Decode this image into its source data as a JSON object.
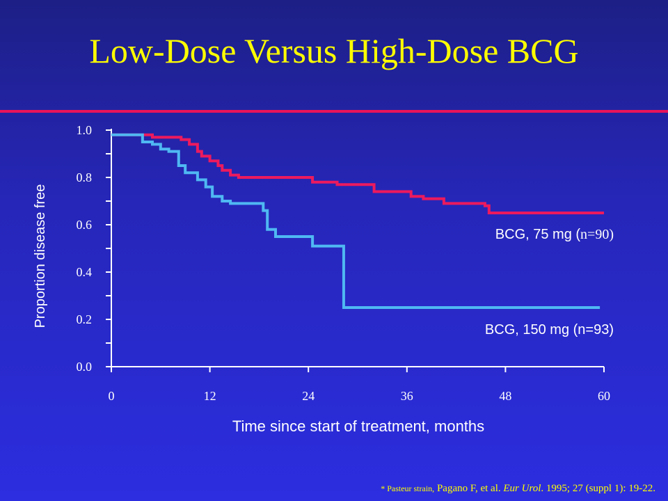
{
  "title": "Low-Dose Versus High-Dose BCG",
  "colors": {
    "accent_line": "#e8145a",
    "title": "#ffff00",
    "series_75mg": "#ec1a5e",
    "series_150mg": "#4fb8f2",
    "axes": "#ffffff"
  },
  "footnote": {
    "prefix": "* Pasteur strain,",
    "authors": " Pagano F, et al.",
    "journal": "Eur Urol",
    "citation": ". 1995; 27 (suppl 1): 19-22."
  },
  "chart_data": {
    "type": "line",
    "step": true,
    "title": "",
    "xlabel": "Time since start of treatment, months",
    "ylabel": "Proportion disease free",
    "xlim": [
      0,
      60
    ],
    "ylim": [
      0.0,
      1.0
    ],
    "xticks": [
      "0",
      "12",
      "24",
      "36",
      "48",
      "60"
    ],
    "yticks": [
      "0.0",
      "0.2",
      "0.4",
      "0.6",
      "0.8",
      "1.0"
    ],
    "grid": false,
    "legend": "inline labels right of curves",
    "series": [
      {
        "name": "BCG, 75 mg (n=90)",
        "label_main": "BCG, 75 mg (",
        "label_n": "n=90)",
        "color": "#ec1a5e",
        "x": [
          0,
          2.5,
          5,
          7.5,
          8.5,
          9.5,
          10.5,
          11,
          12,
          13,
          13.5,
          14.5,
          15.5,
          24.5,
          27.5,
          32,
          36.5,
          38,
          40.5,
          45.5,
          46,
          60
        ],
        "y": [
          0.98,
          0.98,
          0.97,
          0.97,
          0.96,
          0.94,
          0.91,
          0.89,
          0.87,
          0.85,
          0.83,
          0.81,
          0.8,
          0.78,
          0.77,
          0.74,
          0.72,
          0.71,
          0.69,
          0.68,
          0.65,
          0.65
        ]
      },
      {
        "name": "BCG, 150 mg (n=93)",
        "label_main": "BCG, 150 mg (n=93)",
        "label_n": "",
        "color": "#4fb8f2",
        "x": [
          0,
          3.8,
          5,
          6,
          7,
          8.2,
          9,
          10.5,
          11.5,
          12.3,
          13.5,
          14.5,
          18.5,
          19,
          20,
          24.5,
          28.3,
          59.5
        ],
        "y": [
          0.98,
          0.95,
          0.94,
          0.92,
          0.91,
          0.85,
          0.82,
          0.79,
          0.76,
          0.72,
          0.7,
          0.69,
          0.66,
          0.58,
          0.55,
          0.51,
          0.25,
          0.25
        ]
      }
    ]
  }
}
